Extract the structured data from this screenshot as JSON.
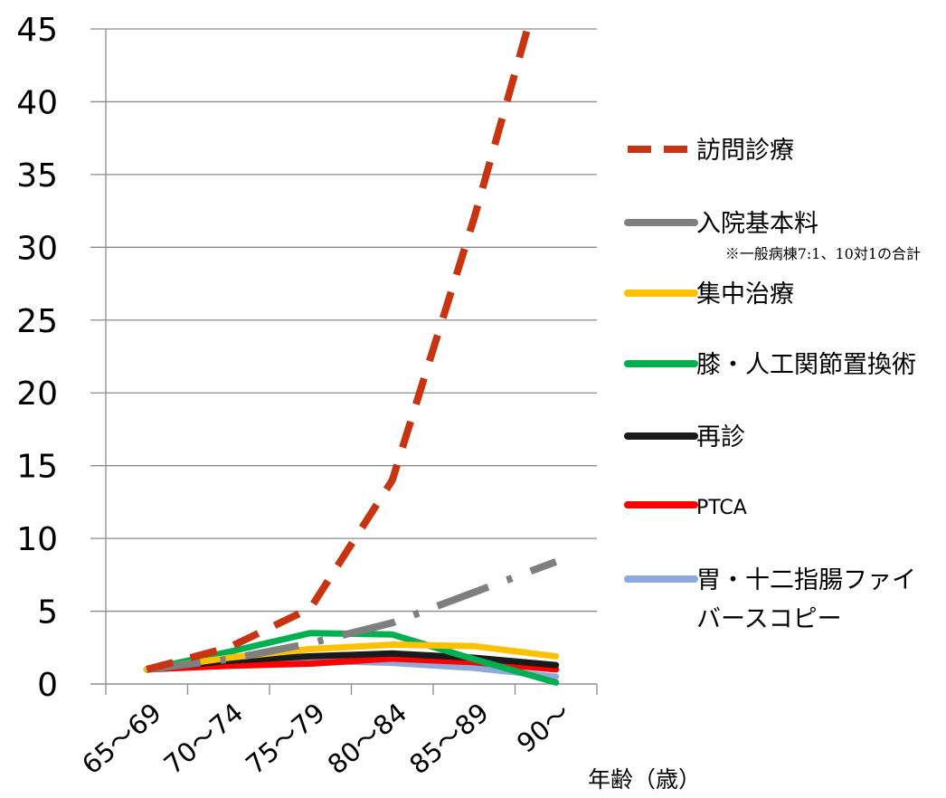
{
  "chart_data": {
    "type": "line",
    "xlabel": "年齢（歳）",
    "ylabel": "",
    "ylim": [
      0,
      45
    ],
    "yticks": [
      0,
      5,
      10,
      15,
      20,
      25,
      30,
      35,
      40,
      45
    ],
    "grid": true,
    "legend_position": "right",
    "categories": [
      "65～69",
      "70～74",
      "75～79",
      "80～84",
      "85～89",
      "90～"
    ],
    "series": [
      {
        "name": "訪問診療",
        "color": "#c8340f",
        "style": "dashed",
        "values": [
          1.0,
          2.5,
          5.2,
          14.0,
          32.0,
          52.0
        ]
      },
      {
        "name": "入院基本料",
        "note": "※一般病棟7:1、10対1の合計",
        "color": "#7f7f7f",
        "style": "dashdot",
        "values": [
          1.0,
          1.7,
          2.8,
          4.2,
          6.3,
          8.4
        ]
      },
      {
        "name": "集中治療",
        "color": "#ffc000",
        "style": "solid",
        "values": [
          1.0,
          1.8,
          2.4,
          2.7,
          2.6,
          1.9
        ]
      },
      {
        "name": "膝・人工関節置換術",
        "color": "#00b050",
        "style": "solid",
        "values": [
          1.0,
          2.2,
          3.5,
          3.4,
          1.7,
          0.1
        ]
      },
      {
        "name": "再診",
        "color": "#1a1a1a",
        "style": "solid",
        "values": [
          1.0,
          1.6,
          1.9,
          2.1,
          1.8,
          1.3
        ]
      },
      {
        "name": "PTCA",
        "color": "#ff0000",
        "style": "solid",
        "values": [
          1.0,
          1.25,
          1.4,
          1.75,
          1.5,
          1.0
        ]
      },
      {
        "name": "胃・十二指腸ファイバースコピー",
        "name_lines": [
          "胃・十二指腸ファイ",
          "バースコピー"
        ],
        "color": "#8ea9db",
        "style": "solid",
        "values": [
          1.0,
          1.45,
          1.6,
          1.45,
          1.1,
          0.5
        ]
      }
    ]
  }
}
